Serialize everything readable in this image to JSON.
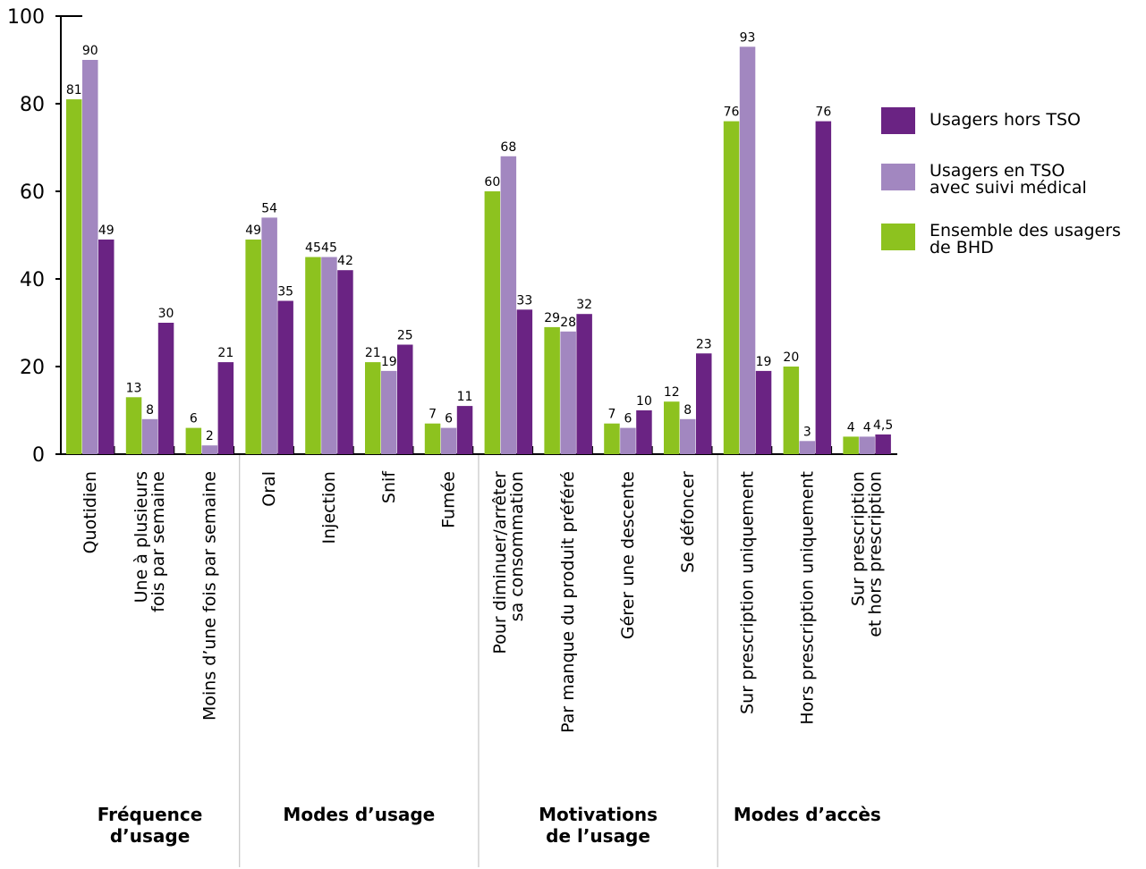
{
  "chart_data": {
    "type": "bar",
    "ylim": [
      0,
      100
    ],
    "yticks": [
      0,
      20,
      40,
      60,
      80,
      100
    ],
    "grid": false,
    "legend_position": "right",
    "colors": {
      "Ensemble des usagers de BHD": "#8dc21f",
      "Usagers en TSO avec suivi médical": "#a287c0",
      "Usagers hors TSO": "#6a2383"
    },
    "legend": [
      {
        "series": "hors",
        "lines": [
          "Usagers hors TSO"
        ]
      },
      {
        "series": "tso",
        "lines": [
          "Usagers en  TSO",
          "avec suivi médical"
        ]
      },
      {
        "series": "ensemble",
        "lines": [
          "Ensemble des usagers",
          "de BHD"
        ]
      }
    ],
    "series": [
      {
        "key": "ensemble",
        "name": "Ensemble des usagers de BHD",
        "values": [
          81,
          13,
          6,
          49,
          45,
          21,
          7,
          60,
          29,
          7,
          12,
          76,
          20,
          4
        ],
        "labels": [
          "81",
          "13",
          "6",
          "49",
          "45",
          "21",
          "7",
          "60",
          "29",
          "7",
          "12",
          "76",
          "20",
          "4"
        ]
      },
      {
        "key": "tso",
        "name": "Usagers en TSO avec suivi médical",
        "values": [
          90,
          8,
          2,
          54,
          45,
          19,
          6,
          68,
          28,
          6,
          8,
          93,
          3,
          4
        ],
        "labels": [
          "90",
          "8",
          "2",
          "54",
          "45",
          "19",
          "6",
          "68",
          "28",
          "6",
          "8",
          "93",
          "3",
          "4"
        ]
      },
      {
        "key": "hors",
        "name": "Usagers hors TSO",
        "values": [
          49,
          30,
          21,
          35,
          42,
          25,
          11,
          33,
          32,
          10,
          23,
          19,
          76,
          4.5
        ],
        "labels": [
          "49",
          "30",
          "21",
          "35",
          "42",
          "25",
          "11",
          "33",
          "32",
          "10",
          "23",
          "19",
          "76",
          "4,5"
        ]
      }
    ],
    "categories": [
      [
        "Quotidien"
      ],
      [
        "Une à plusieurs",
        "fois par semaine"
      ],
      [
        "Moins d’une fois par semaine"
      ],
      [
        "Oral"
      ],
      [
        "Injection"
      ],
      [
        "Snif"
      ],
      [
        "Fumée"
      ],
      [
        "Pour diminuer/arrêter",
        "sa consommation"
      ],
      [
        "Par manque du produit préféré"
      ],
      [
        "Gérer une descente"
      ],
      [
        "Se défoncer"
      ],
      [
        "Sur prescription uniquement"
      ],
      [
        "Hors prescription uniquement"
      ],
      [
        "Sur prescription",
        "et hors prescription"
      ]
    ],
    "groups": [
      {
        "lines": [
          "Fréquence",
          "d’usage"
        ],
        "count": 3
      },
      {
        "lines": [
          "Modes d’usage"
        ],
        "count": 4
      },
      {
        "lines": [
          "Motivations",
          "de l’usage"
        ],
        "count": 4
      },
      {
        "lines": [
          "Modes d’accès"
        ],
        "count": 3
      }
    ]
  }
}
